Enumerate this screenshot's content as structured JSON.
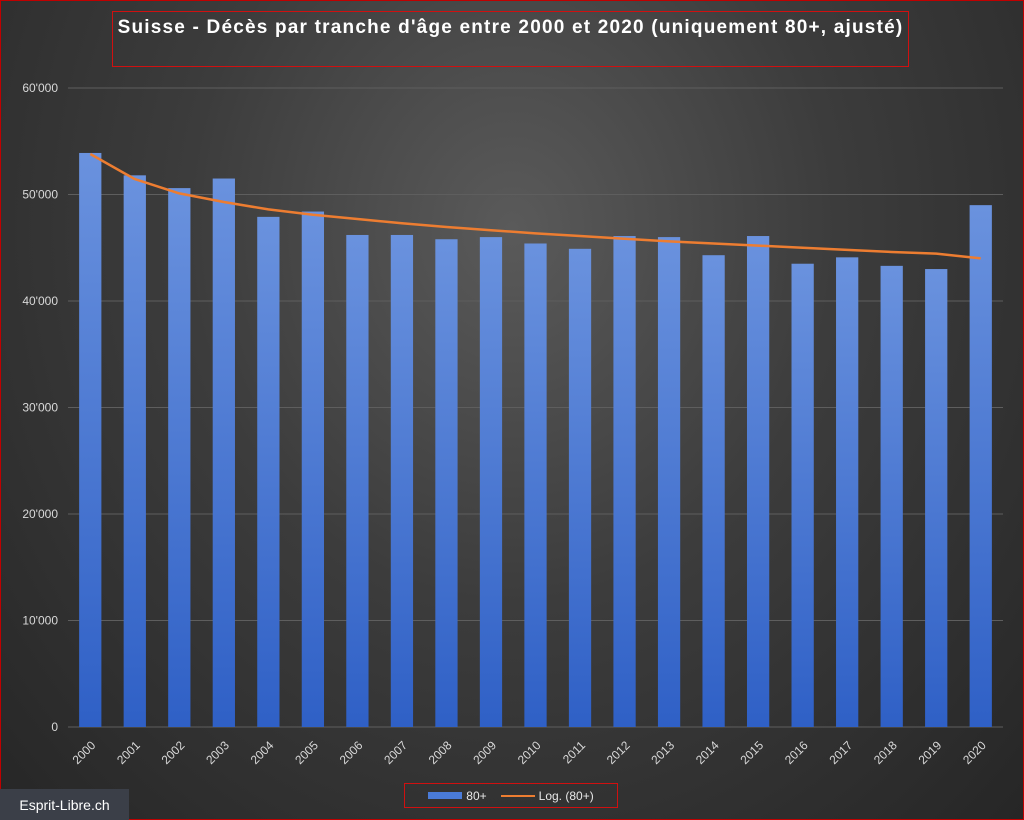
{
  "title": "Suisse - Décès par tranche d'âge entre 2000 et 2020 (uniquement 80+, ajusté)",
  "watermark": "Esprit-Libre.ch",
  "colors": {
    "bar": "#4a7bd8",
    "trend": "#ed7d31",
    "frame": "#d01010"
  },
  "chart_data": {
    "type": "bar",
    "title": "Suisse - Décès par tranche d'âge entre 2000 et 2020 (uniquement 80+, ajusté)",
    "categories": [
      "2000",
      "2001",
      "2002",
      "2003",
      "2004",
      "2005",
      "2006",
      "2007",
      "2008",
      "2009",
      "2010",
      "2011",
      "2012",
      "2013",
      "2014",
      "2015",
      "2016",
      "2017",
      "2018",
      "2019",
      "2020"
    ],
    "series": [
      {
        "name": "80+",
        "kind": "bar",
        "values": [
          53900,
          51800,
          50600,
          51500,
          47900,
          48400,
          46200,
          46200,
          45800,
          46000,
          45400,
          44900,
          46100,
          46000,
          44300,
          46100,
          43500,
          44100,
          43300,
          43000,
          49000
        ]
      },
      {
        "name": "Log. (80+)",
        "kind": "logarithmic-trendline",
        "values": [
          53800,
          51450,
          50100,
          49300,
          48600,
          48100,
          47700,
          47300,
          46950,
          46650,
          46350,
          46100,
          45850,
          45600,
          45400,
          45200,
          45000,
          44800,
          44600,
          44450,
          44000
        ]
      }
    ],
    "ylim": [
      0,
      60000
    ],
    "yticks": [
      0,
      10000,
      20000,
      30000,
      40000,
      50000,
      60000
    ],
    "ytick_labels": [
      "0",
      "10'000",
      "20'000",
      "30'000",
      "40'000",
      "50'000",
      "60'000"
    ],
    "grid": true,
    "legend": "bottom-center"
  }
}
